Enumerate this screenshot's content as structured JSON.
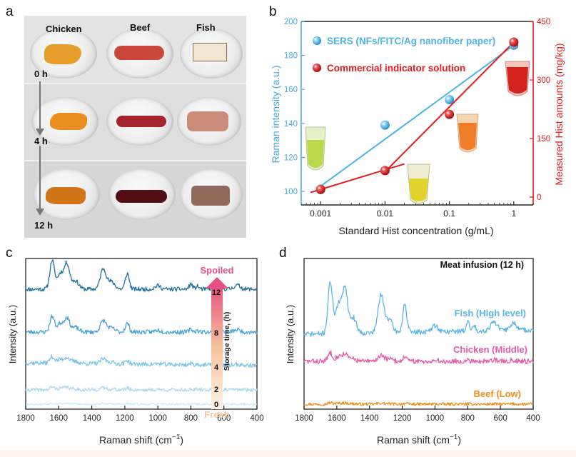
{
  "panels": {
    "a": "a",
    "b": "b",
    "c": "c",
    "d": "d"
  },
  "photo": {
    "meats": [
      "Chicken",
      "Beef",
      "Fish"
    ],
    "times": [
      "0 h",
      "4 h",
      "12 h"
    ]
  },
  "colors": {
    "blue": "#4fb3e6",
    "red": "#e41a1c",
    "axis_blue": "#49a9dc",
    "c_dark": "#1f6f9e",
    "c_mid": "#4aa3d8",
    "c_light": "#7cc3ea",
    "c_lighter": "#a9d8f2",
    "c_lightest": "#cfeaf9",
    "fish": "#5ab6e6",
    "chicken": "#e65aa7",
    "beef": "#f08c1c"
  },
  "chart_data": [
    {
      "type": "scatter",
      "panel": "b",
      "xscale": "log",
      "xlabel": "Standard Hist concentration (g/mL)",
      "ylabel": "Raman intensity (a.u.)",
      "y2label": "Measured Hist amounts (mg/kg)",
      "x_ticks": [
        "0.001",
        "0.01",
        "0.1",
        "1"
      ],
      "xlim": [
        0.0005,
        2
      ],
      "ylim": [
        92,
        200
      ],
      "y_ticks": [
        "100",
        "120",
        "140",
        "160",
        "180",
        "200"
      ],
      "y2lim": [
        -20,
        450
      ],
      "y2_ticks": [
        "0",
        "150",
        "300",
        "450"
      ],
      "series": [
        {
          "name": "SERS (NFs/FITC/Ag nanofiber paper)",
          "axis": "left",
          "x": [
            0.001,
            0.01,
            0.1,
            1
          ],
          "y": [
            101,
            139,
            154,
            186
          ],
          "fit": [
            [
              0.001,
              103
            ],
            [
              1,
              186
            ]
          ]
        },
        {
          "name": "Commercial indicator solution",
          "axis": "right",
          "x": [
            0.001,
            0.01,
            0.1,
            1
          ],
          "y": [
            20,
            68,
            212,
            397
          ],
          "fit_segments": [
            [
              [
                0.0007,
                12
              ],
              [
                0.02,
                85
              ]
            ],
            [
              [
                0.01,
                65
              ],
              [
                1,
                397
              ]
            ]
          ]
        }
      ]
    },
    {
      "type": "line",
      "panel": "c",
      "xlabel": "Raman shift (cm-1)",
      "ylabel": "Intensity (a.u.)",
      "xlim": [
        1800,
        400
      ],
      "x_ticks": [
        "1800",
        "1600",
        "1400",
        "1200",
        "1000",
        "800",
        "600",
        "400"
      ],
      "series_labels": [
        "12",
        "8",
        "4",
        "2",
        "0"
      ],
      "arrow_top": "Spoiled",
      "arrow_bottom": "Fresh",
      "arrow_axis": "Storage time, (h)"
    },
    {
      "type": "line",
      "panel": "d",
      "title": "Meat infusion (12 h)",
      "xlabel": "Raman shift (cm-1)",
      "ylabel": "Intensity (a.u.)",
      "xlim": [
        1800,
        400
      ],
      "x_ticks": [
        "1800",
        "1600",
        "1400",
        "1200",
        "1000",
        "800",
        "600",
        "400"
      ],
      "series_labels": [
        "Fish (High level)",
        "Chicken (Middle)",
        "Beef (Low)"
      ]
    }
  ]
}
